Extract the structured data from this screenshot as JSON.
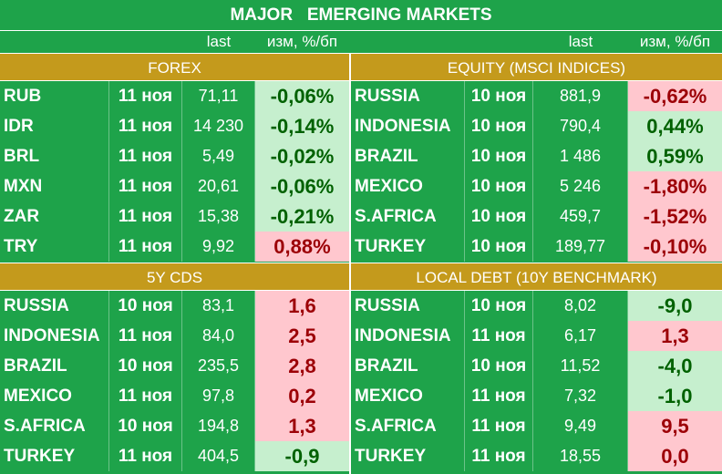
{
  "title": "MAJOR   EMERGING MARKETS",
  "col_last": "last",
  "col_change": "изм, %/бп",
  "sections": {
    "forex": {
      "title": "FOREX",
      "rows": [
        {
          "name": "RUB",
          "date": "11 ноя",
          "last": "71,11",
          "change": "-0,06%",
          "tone": "neg"
        },
        {
          "name": "IDR",
          "date": "11 ноя",
          "last": "14 230",
          "change": "-0,14%",
          "tone": "neg"
        },
        {
          "name": "BRL",
          "date": "11 ноя",
          "last": "5,49",
          "change": "-0,02%",
          "tone": "neg"
        },
        {
          "name": "MXN",
          "date": "11 ноя",
          "last": "20,61",
          "change": "-0,06%",
          "tone": "neg"
        },
        {
          "name": "ZAR",
          "date": "11 ноя",
          "last": "15,38",
          "change": "-0,21%",
          "tone": "neg"
        },
        {
          "name": "TRY",
          "date": "11 ноя",
          "last": "9,92",
          "change": "0,88%",
          "tone": "pos"
        }
      ]
    },
    "equity": {
      "title": "EQUITY (MSCI INDICES)",
      "rows": [
        {
          "name": "RUSSIA",
          "date": "10 ноя",
          "last": "881,9",
          "change": "-0,62%",
          "tone": "pos"
        },
        {
          "name": "INDONESIA",
          "date": "10 ноя",
          "last": "790,4",
          "change": "0,44%",
          "tone": "neg"
        },
        {
          "name": "BRAZIL",
          "date": "10 ноя",
          "last": "1 486",
          "change": "0,59%",
          "tone": "neg"
        },
        {
          "name": "MEXICO",
          "date": "10 ноя",
          "last": "5 246",
          "change": "-1,80%",
          "tone": "pos"
        },
        {
          "name": "S.AFRICA",
          "date": "10 ноя",
          "last": "459,7",
          "change": "-1,52%",
          "tone": "pos"
        },
        {
          "name": "TURKEY",
          "date": "10 ноя",
          "last": "189,77",
          "change": "-0,10%",
          "tone": "pos"
        }
      ]
    },
    "cds": {
      "title": "5Y CDS",
      "rows": [
        {
          "name": "RUSSIA",
          "date": "10 ноя",
          "last": "83,1",
          "change": "1,6",
          "tone": "pos"
        },
        {
          "name": "INDONESIA",
          "date": "11 ноя",
          "last": "84,0",
          "change": "2,5",
          "tone": "pos"
        },
        {
          "name": "BRAZIL",
          "date": "10 ноя",
          "last": "235,5",
          "change": "2,8",
          "tone": "pos"
        },
        {
          "name": "MEXICO",
          "date": "11 ноя",
          "last": "97,8",
          "change": "0,2",
          "tone": "pos"
        },
        {
          "name": "S.AFRICA",
          "date": "10 ноя",
          "last": "194,8",
          "change": "1,3",
          "tone": "pos"
        },
        {
          "name": "TURKEY",
          "date": "11 ноя",
          "last": "404,5",
          "change": "-0,9",
          "tone": "neg"
        }
      ]
    },
    "debt": {
      "title": "LOCAL DEBT (10Y BENCHMARK)",
      "rows": [
        {
          "name": "RUSSIA",
          "date": "10 ноя",
          "last": "8,02",
          "change": "-9,0",
          "tone": "neg"
        },
        {
          "name": "INDONESIA",
          "date": "11 ноя",
          "last": "6,17",
          "change": "1,3",
          "tone": "pos"
        },
        {
          "name": "BRAZIL",
          "date": "10 ноя",
          "last": "11,52",
          "change": "-4,0",
          "tone": "neg"
        },
        {
          "name": "MEXICO",
          "date": "11 ноя",
          "last": "7,32",
          "change": "-1,0",
          "tone": "neg"
        },
        {
          "name": "S.AFRICA",
          "date": "11 ноя",
          "last": "9,49",
          "change": "9,5",
          "tone": "pos"
        },
        {
          "name": "TURKEY",
          "date": "11 ноя",
          "last": "18,55",
          "change": "0,0",
          "tone": "pos"
        }
      ]
    }
  },
  "colors": {
    "background": "#1ea34a",
    "section_header": "#c49a1c",
    "up_fill": "#ffc7ce",
    "up_text": "#9c0006",
    "down_fill": "#c6efce",
    "down_text": "#006100"
  }
}
